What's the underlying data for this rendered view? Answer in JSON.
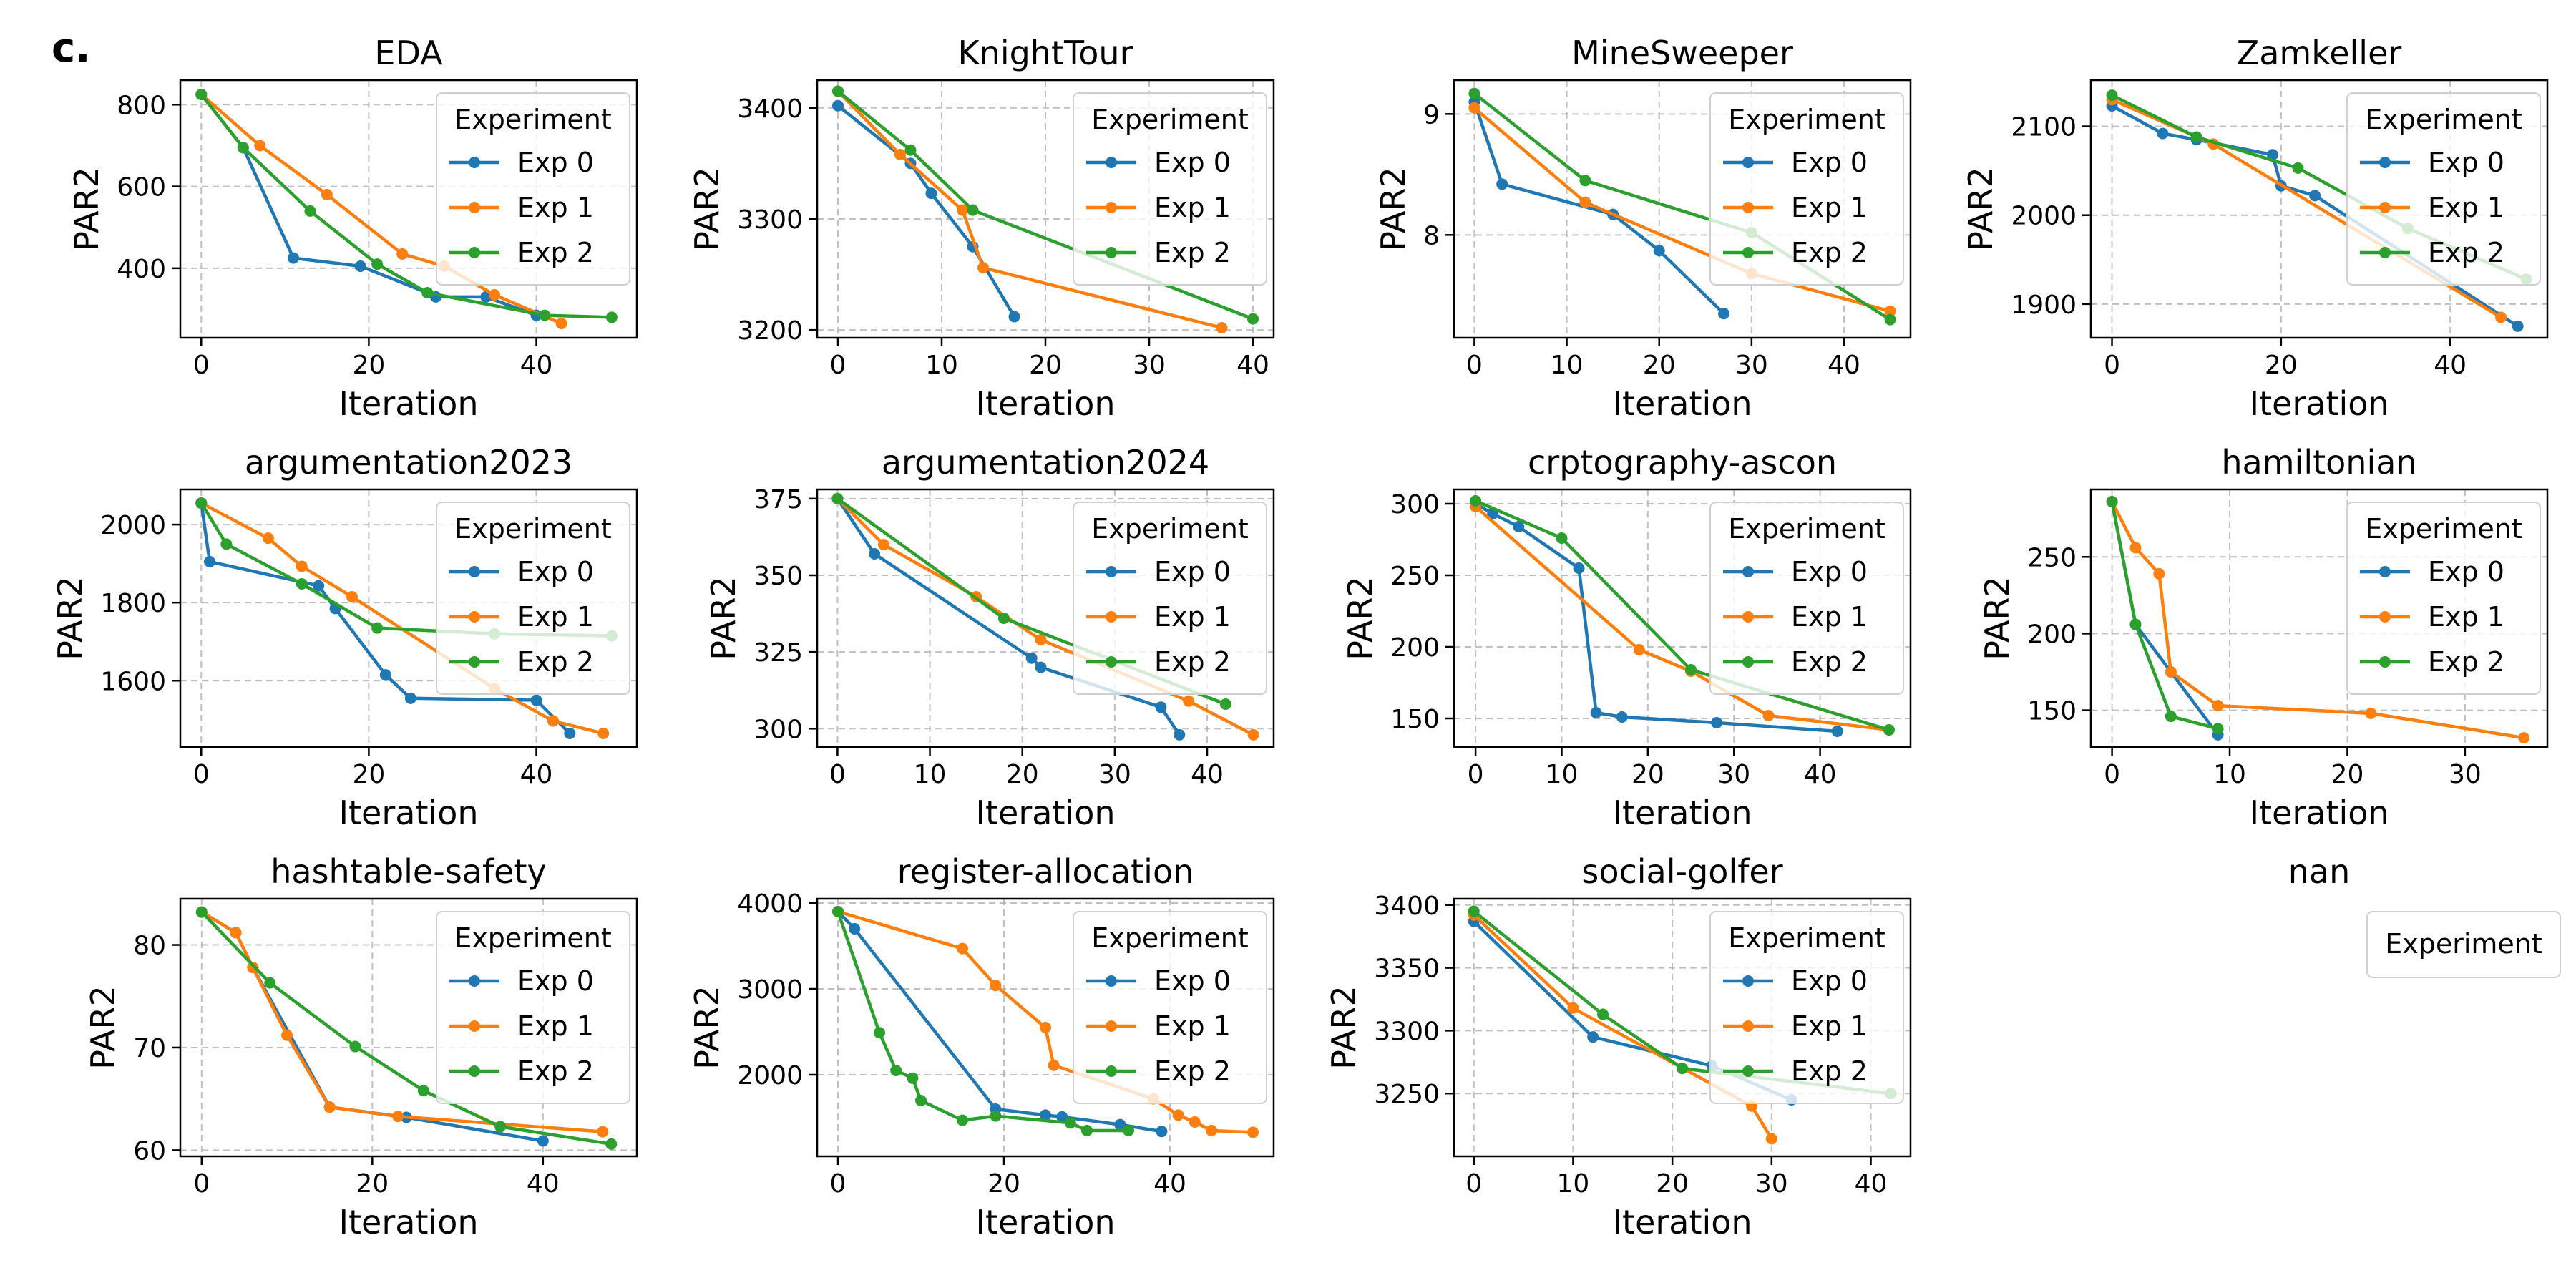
{
  "figure_label": "c.",
  "legend_title": "Experiment",
  "colors": {
    "Exp 0": "#1f77b4",
    "Exp 1": "#ff7f0e",
    "Exp 2": "#2ca02c"
  },
  "chart_data": [
    {
      "type": "line",
      "title": "EDA",
      "xlabel": "Iteration",
      "ylabel": "PAR2",
      "xlim": [
        -2.5,
        52
      ],
      "ylim": [
        230,
        860
      ],
      "xticks": [
        0,
        20,
        40
      ],
      "yticks": [
        400,
        600,
        800
      ],
      "legend": "top-right",
      "grid": true,
      "series": [
        {
          "name": "Exp 0",
          "x": [
            0,
            5,
            11,
            19,
            27,
            28,
            34,
            40
          ],
          "y": [
            825,
            695,
            425,
            405,
            340,
            330,
            330,
            285
          ]
        },
        {
          "name": "Exp 1",
          "x": [
            0,
            7,
            15,
            24,
            29,
            35,
            43
          ],
          "y": [
            825,
            700,
            580,
            435,
            405,
            335,
            265
          ]
        },
        {
          "name": "Exp 2",
          "x": [
            0,
            5,
            13,
            21,
            27,
            41,
            49
          ],
          "y": [
            825,
            695,
            540,
            410,
            340,
            285,
            280
          ]
        }
      ]
    },
    {
      "type": "line",
      "title": "KnightTour",
      "xlabel": "Iteration",
      "ylabel": "PAR2",
      "xlim": [
        -2,
        42
      ],
      "ylim": [
        3193,
        3425
      ],
      "xticks": [
        0,
        10,
        20,
        30,
        40
      ],
      "yticks": [
        3200,
        3300,
        3400
      ],
      "legend": "top-right",
      "grid": true,
      "series": [
        {
          "name": "Exp 0",
          "x": [
            0,
            7,
            9,
            13,
            17
          ],
          "y": [
            3402,
            3350,
            3323,
            3275,
            3212
          ]
        },
        {
          "name": "Exp 1",
          "x": [
            0,
            6,
            12,
            14,
            37
          ],
          "y": [
            3415,
            3358,
            3308,
            3256,
            3202
          ]
        },
        {
          "name": "Exp 2",
          "x": [
            0,
            7,
            13,
            40
          ],
          "y": [
            3415,
            3362,
            3308,
            3210
          ]
        }
      ]
    },
    {
      "type": "line",
      "title": "MineSweeper",
      "xlabel": "Iteration",
      "ylabel": "PAR2",
      "xlim": [
        -2.2,
        47.2
      ],
      "ylim": [
        7.15,
        9.28
      ],
      "xticks": [
        0,
        10,
        20,
        30,
        40
      ],
      "yticks": [
        8,
        9
      ],
      "legend": "top-right",
      "grid": true,
      "series": [
        {
          "name": "Exp 0",
          "x": [
            0,
            3,
            15,
            20,
            27
          ],
          "y": [
            9.1,
            8.42,
            8.17,
            7.87,
            7.35
          ]
        },
        {
          "name": "Exp 1",
          "x": [
            0,
            12,
            30,
            45
          ],
          "y": [
            9.05,
            8.27,
            7.68,
            7.37
          ]
        },
        {
          "name": "Exp 2",
          "x": [
            0,
            12,
            30,
            45
          ],
          "y": [
            9.17,
            8.45,
            8.02,
            7.3
          ]
        }
      ]
    },
    {
      "type": "line",
      "title": "Zamkeller",
      "xlabel": "Iteration",
      "ylabel": "PAR2",
      "xlim": [
        -2.5,
        51.5
      ],
      "ylim": [
        1862,
        2152
      ],
      "xticks": [
        0,
        20,
        40
      ],
      "yticks": [
        1900,
        2000,
        2100
      ],
      "legend": "top-right",
      "grid": true,
      "series": [
        {
          "name": "Exp 0",
          "x": [
            0,
            6,
            10,
            19,
            20,
            24,
            48
          ],
          "y": [
            2123,
            2092,
            2085,
            2068,
            2033,
            2022,
            1875
          ]
        },
        {
          "name": "Exp 1",
          "x": [
            0,
            12,
            46
          ],
          "y": [
            2130,
            2080,
            1885
          ]
        },
        {
          "name": "Exp 2",
          "x": [
            0,
            10,
            22,
            35,
            49
          ],
          "y": [
            2135,
            2088,
            2053,
            1985,
            1928
          ]
        }
      ]
    },
    {
      "type": "line",
      "title": "argumentation2023",
      "xlabel": "Iteration",
      "ylabel": "PAR2",
      "xlim": [
        -2.5,
        52
      ],
      "ylim": [
        1430,
        2090
      ],
      "xticks": [
        0,
        20,
        40
      ],
      "yticks": [
        1600,
        1800,
        2000
      ],
      "legend": "top-right",
      "grid": true,
      "series": [
        {
          "name": "Exp 0",
          "x": [
            0,
            1,
            14,
            16,
            22,
            25,
            40,
            44
          ],
          "y": [
            2055,
            1905,
            1843,
            1785,
            1615,
            1555,
            1550,
            1465
          ]
        },
        {
          "name": "Exp 1",
          "x": [
            0,
            8,
            12,
            18,
            35,
            42,
            48
          ],
          "y": [
            2055,
            1965,
            1893,
            1815,
            1580,
            1497,
            1465
          ]
        },
        {
          "name": "Exp 2",
          "x": [
            0,
            3,
            12,
            21,
            35,
            49
          ],
          "y": [
            2055,
            1950,
            1848,
            1735,
            1720,
            1715
          ]
        }
      ]
    },
    {
      "type": "line",
      "title": "argumentation2024",
      "xlabel": "Iteration",
      "ylabel": "PAR2",
      "xlim": [
        -2.2,
        47.2
      ],
      "ylim": [
        294,
        378
      ],
      "xticks": [
        0,
        10,
        20,
        30,
        40
      ],
      "yticks": [
        300,
        325,
        350,
        375
      ],
      "legend": "top-right",
      "grid": true,
      "series": [
        {
          "name": "Exp 0",
          "x": [
            0,
            4,
            21,
            22,
            35,
            37
          ],
          "y": [
            375,
            357,
            323,
            320,
            307,
            298
          ]
        },
        {
          "name": "Exp 1",
          "x": [
            0,
            5,
            15,
            22,
            38,
            45
          ],
          "y": [
            375,
            360,
            343,
            329,
            309,
            298
          ]
        },
        {
          "name": "Exp 2",
          "x": [
            0,
            18,
            42
          ],
          "y": [
            375,
            336,
            308
          ]
        }
      ]
    },
    {
      "type": "line",
      "title": "crptography-ascon",
      "xlabel": "Iteration",
      "ylabel": "PAR2",
      "xlim": [
        -2.5,
        50.5
      ],
      "ylim": [
        130,
        310
      ],
      "xticks": [
        0,
        10,
        20,
        30,
        40
      ],
      "yticks": [
        150,
        200,
        250,
        300
      ],
      "legend": "top-right",
      "grid": true,
      "series": [
        {
          "name": "Exp 0",
          "x": [
            0,
            2,
            5,
            12,
            14,
            17,
            28,
            42
          ],
          "y": [
            300,
            293,
            284,
            255,
            154,
            151,
            147,
            141
          ]
        },
        {
          "name": "Exp 1",
          "x": [
            0,
            19,
            25,
            34,
            48
          ],
          "y": [
            298,
            198,
            183,
            152,
            142
          ]
        },
        {
          "name": "Exp 2",
          "x": [
            0,
            10,
            25,
            48
          ],
          "y": [
            302,
            276,
            184,
            142
          ]
        }
      ]
    },
    {
      "type": "line",
      "title": "hamiltonian",
      "xlabel": "Iteration",
      "ylabel": "PAR2",
      "xlim": [
        -1.8,
        37
      ],
      "ylim": [
        126,
        294
      ],
      "xticks": [
        0,
        10,
        20,
        30
      ],
      "yticks": [
        150,
        200,
        250
      ],
      "legend": "top-right",
      "grid": true,
      "series": [
        {
          "name": "Exp 0",
          "x": [
            0,
            2,
            5,
            9
          ],
          "y": [
            286,
            206,
            175,
            134
          ]
        },
        {
          "name": "Exp 1",
          "x": [
            0,
            2,
            4,
            5,
            9,
            22,
            35
          ],
          "y": [
            286,
            256,
            239,
            175,
            153,
            148,
            132
          ]
        },
        {
          "name": "Exp 2",
          "x": [
            0,
            2,
            5,
            9
          ],
          "y": [
            286,
            206,
            146,
            138
          ]
        }
      ]
    },
    {
      "type": "line",
      "title": "hashtable-safety",
      "xlabel": "Iteration",
      "ylabel": "PAR2",
      "xlim": [
        -2.5,
        51
      ],
      "ylim": [
        59.4,
        84.5
      ],
      "xticks": [
        0,
        20,
        40
      ],
      "yticks": [
        60,
        70,
        80
      ],
      "legend": "top-right",
      "grid": true,
      "series": [
        {
          "name": "Exp 0",
          "x": [
            0,
            4,
            6,
            15,
            24,
            40
          ],
          "y": [
            83.2,
            81.2,
            77.8,
            64.2,
            63.2,
            60.9
          ]
        },
        {
          "name": "Exp 1",
          "x": [
            0,
            4,
            6,
            10,
            15,
            23,
            47
          ],
          "y": [
            83.2,
            81.2,
            77.8,
            71.2,
            64.2,
            63.3,
            61.8
          ]
        },
        {
          "name": "Exp 2",
          "x": [
            0,
            8,
            18,
            26,
            35,
            48
          ],
          "y": [
            83.2,
            76.3,
            70.1,
            65.8,
            62.3,
            60.6
          ]
        }
      ]
    },
    {
      "type": "line",
      "title": "register-allocation",
      "xlabel": "Iteration",
      "ylabel": "PAR2",
      "xlim": [
        -2.5,
        52.5
      ],
      "ylim": [
        1050,
        4050
      ],
      "xticks": [
        0,
        20,
        40
      ],
      "yticks": [
        2000,
        3000,
        4000
      ],
      "legend": "top-right",
      "grid": true,
      "series": [
        {
          "name": "Exp 0",
          "x": [
            0,
            2,
            19,
            25,
            27,
            34,
            39
          ],
          "y": [
            3900,
            3700,
            1600,
            1530,
            1510,
            1420,
            1340
          ]
        },
        {
          "name": "Exp 1",
          "x": [
            0,
            15,
            19,
            25,
            26,
            38,
            41,
            43,
            45,
            50
          ],
          "y": [
            3900,
            3470,
            3040,
            2550,
            2110,
            1720,
            1530,
            1450,
            1350,
            1330
          ]
        },
        {
          "name": "Exp 2",
          "x": [
            0,
            5,
            7,
            9,
            10,
            15,
            19,
            28,
            30,
            35
          ],
          "y": [
            3900,
            2490,
            2050,
            1960,
            1700,
            1470,
            1520,
            1440,
            1350,
            1350
          ]
        }
      ]
    },
    {
      "type": "line",
      "title": "social-golfer",
      "xlabel": "Iteration",
      "ylabel": "PAR2",
      "xlim": [
        -2,
        44
      ],
      "ylim": [
        3200,
        3405
      ],
      "xticks": [
        0,
        10,
        20,
        30,
        40
      ],
      "yticks": [
        3250,
        3300,
        3350,
        3400
      ],
      "legend": "top-right",
      "grid": true,
      "series": [
        {
          "name": "Exp 0",
          "x": [
            0,
            12,
            24,
            32
          ],
          "y": [
            3387,
            3295,
            3272,
            3245
          ]
        },
        {
          "name": "Exp 1",
          "x": [
            0,
            10,
            28,
            30
          ],
          "y": [
            3392,
            3318,
            3240,
            3214
          ]
        },
        {
          "name": "Exp 2",
          "x": [
            0,
            13,
            21,
            42
          ],
          "y": [
            3395,
            3313,
            3270,
            3250
          ]
        }
      ]
    },
    {
      "type": "line",
      "title": "nan",
      "legend": "top-right",
      "empty": true,
      "series": []
    }
  ]
}
